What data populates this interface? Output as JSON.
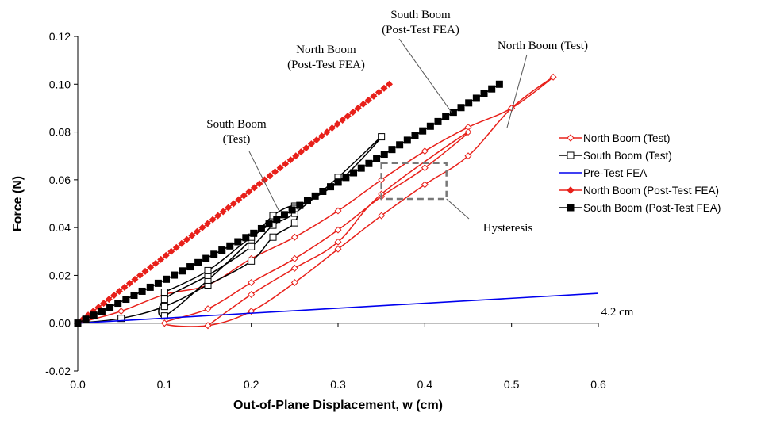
{
  "chart_data": {
    "type": "line",
    "xlabel": "Out-of-Plane Displacement, w (cm)",
    "ylabel": "Force (N)",
    "xlim": [
      0,
      0.6
    ],
    "ylim": [
      -0.02,
      0.12
    ],
    "x_ticks": [
      "0.0",
      "0.1",
      "0.2",
      "0.3",
      "0.4",
      "0.5",
      "0.6"
    ],
    "y_ticks": [
      "-0.02",
      "0.00",
      "0.02",
      "0.04",
      "0.06",
      "0.08",
      "0.10",
      "0.12"
    ],
    "legend_position": "right",
    "series": [
      {
        "name": "North Boom (Test)",
        "color": "#e8201a",
        "marker": "open-diamond",
        "points": [
          [
            0,
            0
          ],
          [
            0.05,
            0.005
          ],
          [
            0.1,
            0.012
          ],
          [
            0.15,
            0.016
          ],
          [
            0.2,
            0.027
          ],
          [
            0.25,
            0.036
          ],
          [
            0.3,
            0.047
          ],
          [
            0.35,
            0.06
          ],
          [
            0.4,
            0.072
          ],
          [
            0.45,
            0.082
          ],
          [
            0.5,
            0.09
          ],
          [
            0.548,
            0.103
          ],
          [
            0.5,
            0.09
          ],
          [
            0.45,
            0.07
          ],
          [
            0.4,
            0.058
          ],
          [
            0.35,
            0.045
          ],
          [
            0.3,
            0.031
          ],
          [
            0.25,
            0.017
          ],
          [
            0.2,
            0.005
          ],
          [
            0.15,
            -0.001
          ],
          [
            0.1,
            0
          ],
          [
            0.15,
            0.006
          ],
          [
            0.2,
            0.017
          ],
          [
            0.25,
            0.027
          ],
          [
            0.3,
            0.039
          ],
          [
            0.35,
            0.053
          ],
          [
            0.4,
            0.065
          ],
          [
            0.45,
            0.08
          ],
          [
            0.35,
            0.054
          ],
          [
            0.3,
            0.034
          ],
          [
            0.25,
            0.023
          ],
          [
            0.2,
            0.012
          ],
          [
            0.15,
            -0.001
          ]
        ]
      },
      {
        "name": "South Boom (Test)",
        "color": "#000000",
        "marker": "open-square",
        "points": [
          [
            0,
            0
          ],
          [
            0.05,
            0.002
          ],
          [
            0.1,
            0.007
          ],
          [
            0.15,
            0.016
          ],
          [
            0.2,
            0.026
          ],
          [
            0.225,
            0.036
          ],
          [
            0.25,
            0.042
          ],
          [
            0.25,
            0.049
          ],
          [
            0.225,
            0.045
          ],
          [
            0.2,
            0.035
          ],
          [
            0.15,
            0.018
          ],
          [
            0.1,
            0.003
          ],
          [
            0.1,
            0.01
          ],
          [
            0.15,
            0.02
          ],
          [
            0.2,
            0.032
          ],
          [
            0.225,
            0.041
          ],
          [
            0.25,
            0.046
          ],
          [
            0.3,
            0.061
          ],
          [
            0.35,
            0.078
          ],
          [
            0.3,
            0.059
          ],
          [
            0.25,
            0.048
          ],
          [
            0.2,
            0.036
          ],
          [
            0.15,
            0.022
          ],
          [
            0.1,
            0.013
          ]
        ]
      },
      {
        "name": "Pre-Test FEA",
        "color": "#0000ee",
        "marker": "none",
        "points": [
          [
            0,
            0
          ],
          [
            0.6,
            0.0125
          ]
        ]
      },
      {
        "name": "North Boom (Post-Test FEA)",
        "color": "#e8201a",
        "marker": "filled-diamond",
        "points": [
          [
            0,
            0
          ],
          [
            0.359,
            0.1
          ]
        ]
      },
      {
        "name": "South Boom (Post-Test FEA)",
        "color": "#000000",
        "marker": "filled-square",
        "points": [
          [
            0,
            0
          ],
          [
            0.1,
            0.018
          ],
          [
            0.2,
            0.037
          ],
          [
            0.3,
            0.059
          ],
          [
            0.4,
            0.081
          ],
          [
            0.486,
            0.1
          ]
        ]
      }
    ],
    "annotations": [
      {
        "lines": [
          "South Boom",
          "(Post-Test FEA)"
        ]
      },
      {
        "lines": [
          "North Boom (Test)"
        ]
      },
      {
        "lines": [
          "North Boom",
          "(Post-Test FEA)"
        ]
      },
      {
        "lines": [
          "South Boom",
          "(Test)"
        ]
      },
      {
        "lines": [
          "Hysteresis"
        ]
      },
      {
        "lines": [
          "4.2 cm"
        ]
      }
    ]
  }
}
